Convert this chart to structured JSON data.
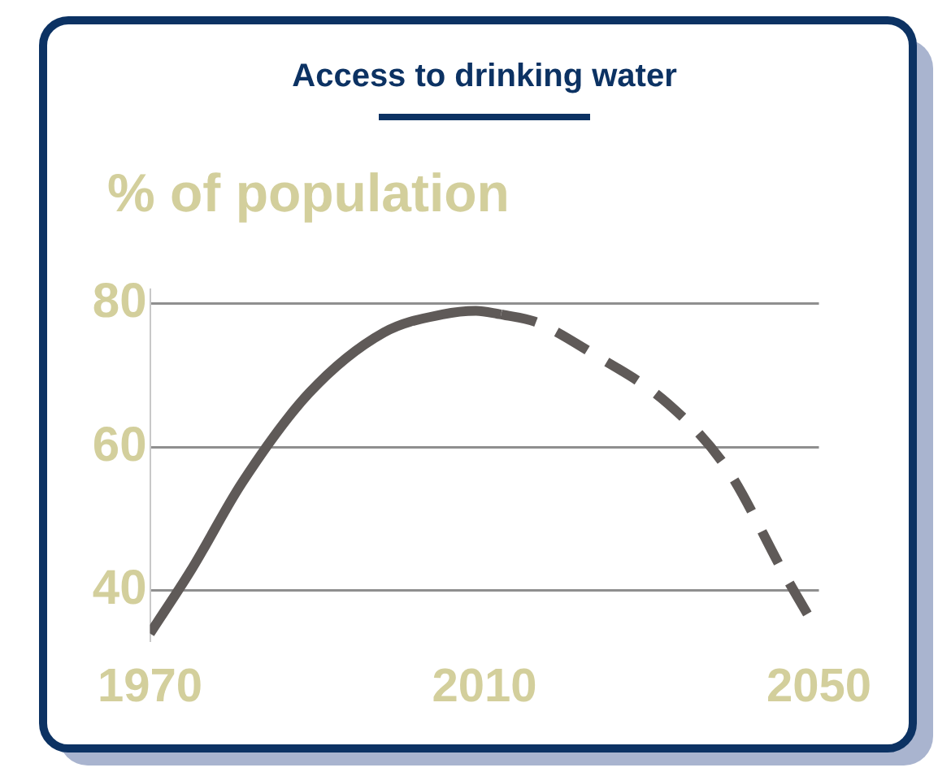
{
  "chart_data": {
    "type": "line",
    "title": "Access to drinking water",
    "ylabel": "% of population",
    "xlim": [
      1970,
      2050
    ],
    "xticks": [
      1970,
      2010,
      2050
    ],
    "ylim": [
      33,
      82
    ],
    "yticks": [
      40,
      60,
      80
    ],
    "grid": "y",
    "marker": "none",
    "series": [
      {
        "color": "#5f5a58",
        "line_style": "solid",
        "x": [
          1970,
          1975,
          1981,
          1989,
          1998,
          2005,
          2009,
          2012
        ],
        "values": [
          34,
          43,
          55,
          67.5,
          76,
          78.5,
          79,
          78.5
        ]
      },
      {
        "color": "#5f5a58",
        "line_style": "dashed",
        "x": [
          2012,
          2016,
          2023,
          2032,
          2039,
          2046,
          2050
        ],
        "values": [
          78.5,
          77.5,
          73,
          66,
          57,
          42,
          34
        ]
      }
    ]
  }
}
